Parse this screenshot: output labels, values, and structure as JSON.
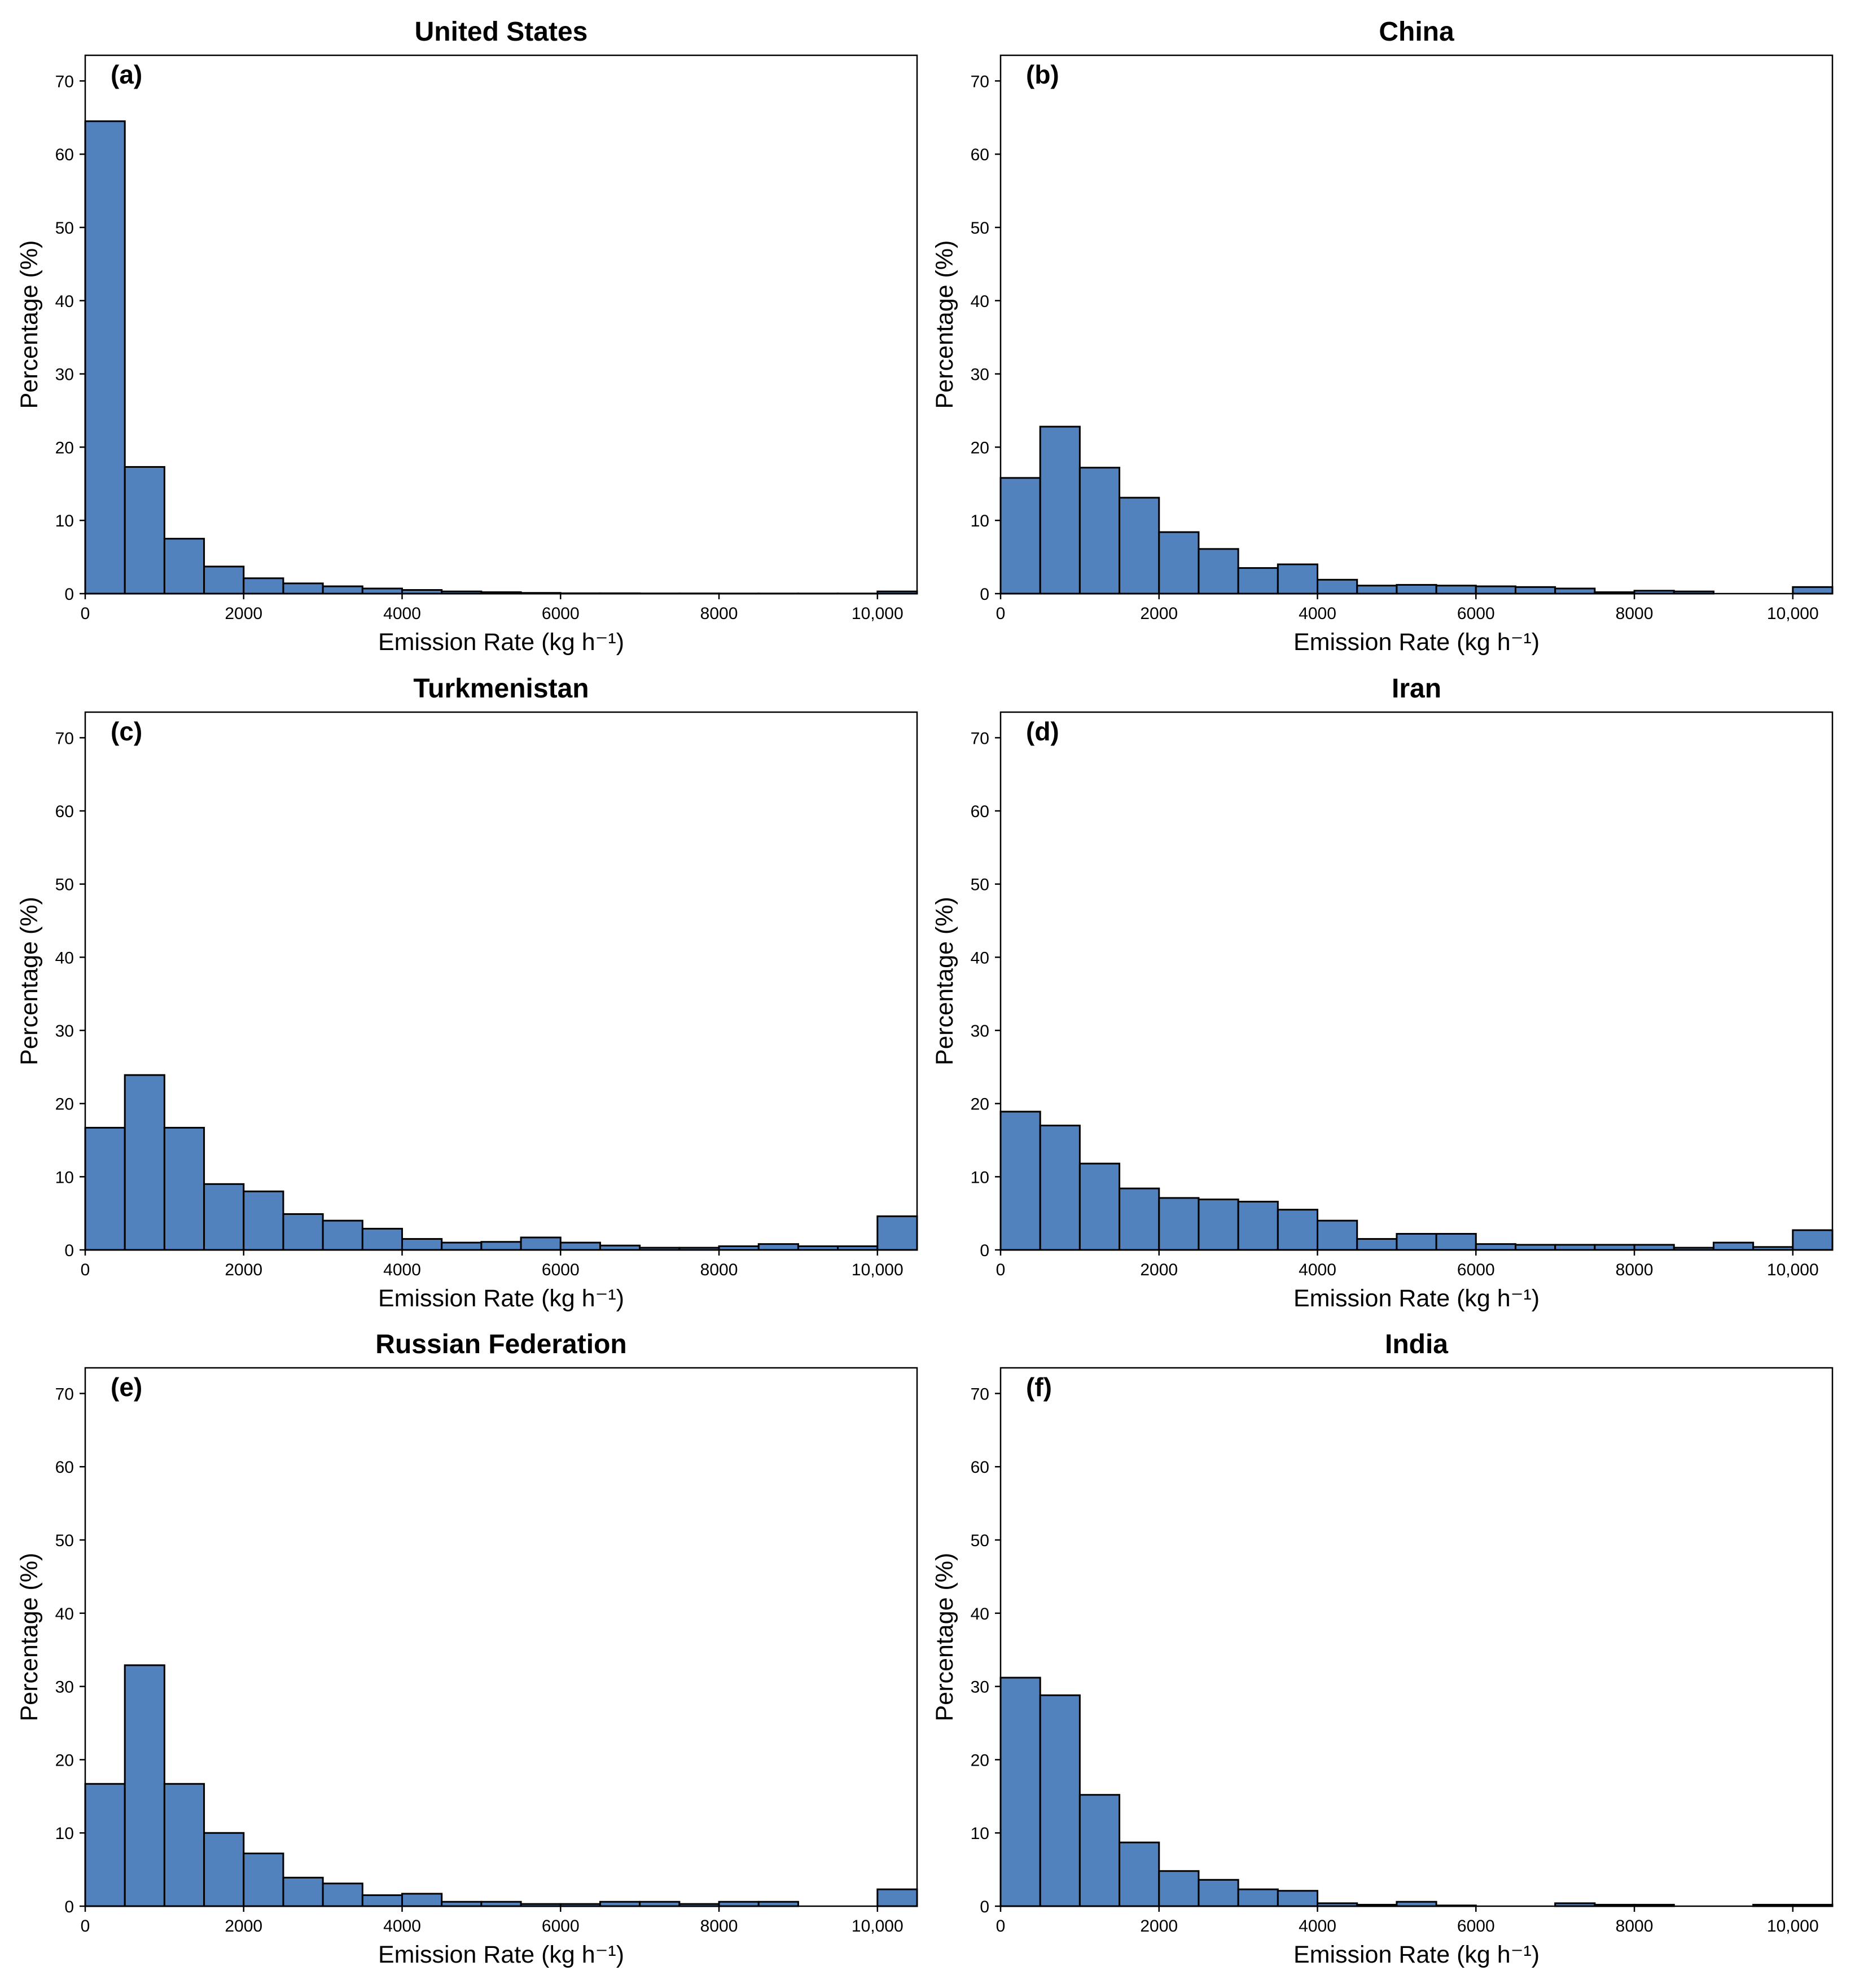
{
  "style": {
    "bar_fill": "#5282be",
    "bar_edge": "#000000"
  },
  "chart_data": [
    {
      "type": "bar",
      "panel": "(a)",
      "title": "United States",
      "xlabel": "Emission Rate (kg h⁻¹)",
      "ylabel": "Percentage (%)",
      "xlim": [
        0,
        10500
      ],
      "ylim": [
        0,
        73.5
      ],
      "bin_width": 500,
      "xticks": [
        0,
        2000,
        4000,
        6000,
        8000,
        10000
      ],
      "xtick_labels": [
        "0",
        "2000",
        "4000",
        "6000",
        "8000",
        "10,000"
      ],
      "yticks": [
        0,
        10,
        20,
        30,
        40,
        50,
        60,
        70
      ],
      "grid": false,
      "values": [
        64.5,
        17.3,
        7.5,
        3.7,
        2.1,
        1.4,
        1.0,
        0.7,
        0.5,
        0.3,
        0.2,
        0.1,
        0.05,
        0.05,
        0.03,
        0.03,
        0.02,
        0.02,
        0.02,
        0.02,
        0.3
      ]
    },
    {
      "type": "bar",
      "panel": "(b)",
      "title": "China",
      "xlabel": "Emission Rate (kg h⁻¹)",
      "ylabel": "Percentage (%)",
      "xlim": [
        0,
        10500
      ],
      "ylim": [
        0,
        73.5
      ],
      "bin_width": 500,
      "xticks": [
        0,
        2000,
        4000,
        6000,
        8000,
        10000
      ],
      "xtick_labels": [
        "0",
        "2000",
        "4000",
        "6000",
        "8000",
        "10,000"
      ],
      "yticks": [
        0,
        10,
        20,
        30,
        40,
        50,
        60,
        70
      ],
      "grid": false,
      "values": [
        15.8,
        22.8,
        17.2,
        13.1,
        8.4,
        6.1,
        3.5,
        4.0,
        1.9,
        1.1,
        1.2,
        1.1,
        1.0,
        0.9,
        0.7,
        0.2,
        0.4,
        0.3,
        0.0,
        0.0,
        0.9
      ]
    },
    {
      "type": "bar",
      "panel": "(c)",
      "title": "Turkmenistan",
      "xlabel": "Emission Rate (kg h⁻¹)",
      "ylabel": "Percentage (%)",
      "xlim": [
        0,
        10500
      ],
      "ylim": [
        0,
        73.5
      ],
      "bin_width": 500,
      "xticks": [
        0,
        2000,
        4000,
        6000,
        8000,
        10000
      ],
      "xtick_labels": [
        "0",
        "2000",
        "4000",
        "6000",
        "8000",
        "10,000"
      ],
      "yticks": [
        0,
        10,
        20,
        30,
        40,
        50,
        60,
        70
      ],
      "grid": false,
      "values": [
        16.7,
        23.9,
        16.7,
        9.0,
        8.0,
        4.9,
        4.0,
        2.9,
        1.5,
        1.0,
        1.1,
        1.7,
        1.0,
        0.6,
        0.3,
        0.3,
        0.5,
        0.8,
        0.5,
        0.5,
        4.6
      ]
    },
    {
      "type": "bar",
      "panel": "(d)",
      "title": "Iran",
      "xlabel": "Emission Rate (kg h⁻¹)",
      "ylabel": "Percentage (%)",
      "xlim": [
        0,
        10500
      ],
      "ylim": [
        0,
        73.5
      ],
      "bin_width": 500,
      "xticks": [
        0,
        2000,
        4000,
        6000,
        8000,
        10000
      ],
      "xtick_labels": [
        "0",
        "2000",
        "4000",
        "6000",
        "8000",
        "10,000"
      ],
      "yticks": [
        0,
        10,
        20,
        30,
        40,
        50,
        60,
        70
      ],
      "grid": false,
      "values": [
        18.9,
        17.0,
        11.8,
        8.4,
        7.1,
        6.9,
        6.6,
        5.5,
        4.0,
        1.5,
        2.2,
        2.2,
        0.8,
        0.7,
        0.7,
        0.7,
        0.7,
        0.3,
        1.0,
        0.4,
        2.7
      ]
    },
    {
      "type": "bar",
      "panel": "(e)",
      "title": "Russian Federation",
      "xlabel": "Emission Rate (kg h⁻¹)",
      "ylabel": "Percentage (%)",
      "xlim": [
        0,
        10500
      ],
      "ylim": [
        0,
        73.5
      ],
      "bin_width": 500,
      "xticks": [
        0,
        2000,
        4000,
        6000,
        8000,
        10000
      ],
      "xtick_labels": [
        "0",
        "2000",
        "4000",
        "6000",
        "8000",
        "10,000"
      ],
      "yticks": [
        0,
        10,
        20,
        30,
        40,
        50,
        60,
        70
      ],
      "grid": false,
      "values": [
        16.7,
        32.9,
        16.7,
        10.0,
        7.2,
        3.9,
        3.1,
        1.5,
        1.7,
        0.6,
        0.6,
        0.3,
        0.3,
        0.6,
        0.6,
        0.3,
        0.6,
        0.6,
        0.0,
        0.0,
        2.3
      ]
    },
    {
      "type": "bar",
      "panel": "(f)",
      "title": "India",
      "xlabel": "Emission Rate (kg h⁻¹)",
      "ylabel": "Percentage (%)",
      "xlim": [
        0,
        10500
      ],
      "ylim": [
        0,
        73.5
      ],
      "bin_width": 500,
      "xticks": [
        0,
        2000,
        4000,
        6000,
        8000,
        10000
      ],
      "xtick_labels": [
        "0",
        "2000",
        "4000",
        "6000",
        "8000",
        "10,000"
      ],
      "yticks": [
        0,
        10,
        20,
        30,
        40,
        50,
        60,
        70
      ],
      "grid": false,
      "values": [
        31.2,
        28.8,
        15.2,
        8.7,
        4.8,
        3.6,
        2.3,
        2.1,
        0.4,
        0.2,
        0.6,
        0.1,
        0.0,
        0.0,
        0.4,
        0.2,
        0.2,
        0.0,
        0.0,
        0.2,
        0.2
      ]
    }
  ]
}
